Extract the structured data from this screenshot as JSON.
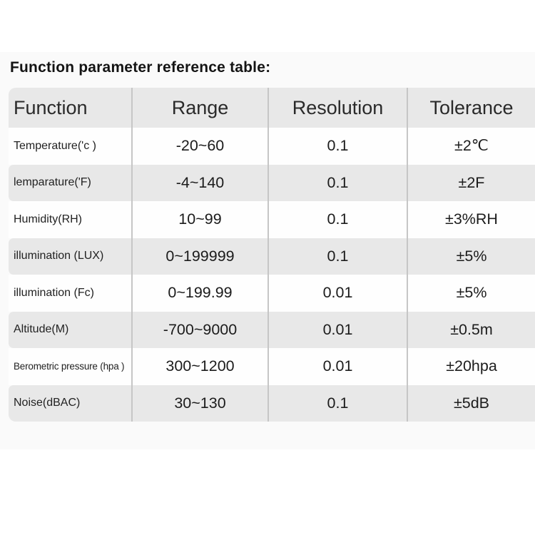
{
  "title": "Function parameter reference table:",
  "table": {
    "headers": [
      "Function",
      "Range",
      "Resolution",
      "Tolerance"
    ],
    "rows": [
      {
        "function": "Temperature('c )",
        "range": "-20~60",
        "resolution": "0.1",
        "tolerance": "±2℃"
      },
      {
        "function": "lemparature('F)",
        "range": "-4~140",
        "resolution": "0.1",
        "tolerance": "±2F"
      },
      {
        "function": "Humidity(RH)",
        "range": "10~99",
        "resolution": "0.1",
        "tolerance": "±3%RH"
      },
      {
        "function": "illumination (LUX)",
        "range": "0~199999",
        "resolution": "0.1",
        "tolerance": "±5%"
      },
      {
        "function": "illumination (Fc)",
        "range": "0~199.99",
        "resolution": "0.01",
        "tolerance": "±5%"
      },
      {
        "function": "Altitude(M)",
        "range": "-700~9000",
        "resolution": "0.01",
        "tolerance": "±0.5m"
      },
      {
        "function": "Berometric pressure (hpa )",
        "range": "300~1200",
        "resolution": "0.01",
        "tolerance": "±20hpa"
      },
      {
        "function": "Noise(dBAC)",
        "range": "30~130",
        "resolution": "0.1",
        "tolerance": "±5dB"
      }
    ]
  },
  "colors": {
    "row_gray": "#e8e8e8",
    "row_white": "#fefefe",
    "divider": "#c6c6c6",
    "content_background": "#fafafa",
    "text": "#1c1c1c"
  }
}
